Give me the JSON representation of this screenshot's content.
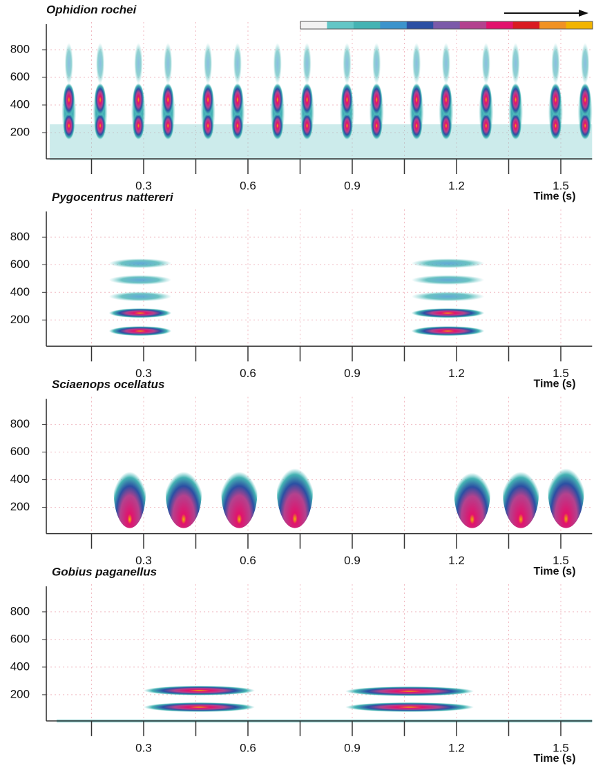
{
  "chart_data": [
    {
      "type": "spectrogram",
      "title": "Ophidion rochei",
      "xlabel": "Time (s)",
      "xlim": [
        0.02,
        1.59
      ],
      "ylim": [
        0,
        1000
      ],
      "xticks": [
        0.3,
        0.6,
        0.9,
        1.2,
        1.5
      ],
      "xminor_ticks": [
        0.15,
        0.45,
        0.75,
        1.05,
        1.35
      ],
      "yticks": [
        200,
        400,
        600,
        800
      ],
      "grid": true,
      "colorscale": [
        "#f2f2f2",
        "#63c6c6",
        "#45b3b3",
        "#3b93cc",
        "#2b4fa3",
        "#7b5aa9",
        "#b3428e",
        "#e2126c",
        "#d91a22",
        "#f19223",
        "#f2b400"
      ],
      "pulses": [
        {
          "start": 0.07,
          "end": 0.1,
          "fmin": 150,
          "fmax": 550
        },
        {
          "start": 0.16,
          "end": 0.19,
          "fmin": 150,
          "fmax": 550
        },
        {
          "start": 0.27,
          "end": 0.3,
          "fmin": 150,
          "fmax": 550
        },
        {
          "start": 0.355,
          "end": 0.385,
          "fmin": 150,
          "fmax": 550
        },
        {
          "start": 0.47,
          "end": 0.5,
          "fmin": 150,
          "fmax": 550
        },
        {
          "start": 0.555,
          "end": 0.585,
          "fmin": 150,
          "fmax": 550
        },
        {
          "start": 0.67,
          "end": 0.7,
          "fmin": 150,
          "fmax": 550
        },
        {
          "start": 0.755,
          "end": 0.785,
          "fmin": 150,
          "fmax": 550
        },
        {
          "start": 0.87,
          "end": 0.9,
          "fmin": 150,
          "fmax": 550
        },
        {
          "start": 0.955,
          "end": 0.985,
          "fmin": 150,
          "fmax": 550
        },
        {
          "start": 1.07,
          "end": 1.1,
          "fmin": 150,
          "fmax": 550
        },
        {
          "start": 1.155,
          "end": 1.185,
          "fmin": 150,
          "fmax": 550
        },
        {
          "start": 1.27,
          "end": 1.3,
          "fmin": 150,
          "fmax": 550
        },
        {
          "start": 1.355,
          "end": 1.385,
          "fmin": 150,
          "fmax": 550
        },
        {
          "start": 1.47,
          "end": 1.5,
          "fmin": 150,
          "fmax": 550
        },
        {
          "start": 1.555,
          "end": 1.585,
          "fmin": 150,
          "fmax": 550
        }
      ]
    },
    {
      "type": "spectrogram",
      "title": "Pygocentrus nattereri",
      "xlabel": "Time (s)",
      "xlim": [
        0.02,
        1.59
      ],
      "ylim": [
        0,
        1000
      ],
      "xticks": [
        0.3,
        0.6,
        0.9,
        1.2,
        1.5
      ],
      "xminor_ticks": [
        0.15,
        0.45,
        0.75,
        1.05,
        1.35
      ],
      "yticks": [
        200,
        400,
        600,
        800
      ],
      "grid": true,
      "pulses": [
        {
          "start": 0.2,
          "end": 0.38,
          "harmonics": [
            120,
            250,
            370,
            490,
            610
          ]
        },
        {
          "start": 1.07,
          "end": 1.28,
          "harmonics": [
            120,
            250,
            370,
            490,
            610
          ]
        }
      ]
    },
    {
      "type": "spectrogram",
      "title": "Sciaenops ocellatus",
      "xlabel": "Time (s)",
      "xlim": [
        0.02,
        1.59
      ],
      "ylim": [
        0,
        1000
      ],
      "xticks": [
        0.3,
        0.6,
        0.9,
        1.2,
        1.5
      ],
      "xminor_ticks": [
        0.15,
        0.45,
        0.75,
        1.05,
        1.35
      ],
      "yticks": [
        200,
        400,
        600,
        800
      ],
      "grid": true,
      "pulses": [
        {
          "start": 0.22,
          "end": 0.3,
          "fmin": 50,
          "fmax": 560
        },
        {
          "start": 0.37,
          "end": 0.46,
          "fmin": 50,
          "fmax": 560
        },
        {
          "start": 0.53,
          "end": 0.62,
          "fmin": 50,
          "fmax": 560
        },
        {
          "start": 0.69,
          "end": 0.78,
          "fmin": 50,
          "fmax": 590
        },
        {
          "start": 1.2,
          "end": 1.29,
          "fmin": 50,
          "fmax": 550
        },
        {
          "start": 1.34,
          "end": 1.43,
          "fmin": 50,
          "fmax": 560
        },
        {
          "start": 1.47,
          "end": 1.56,
          "fmin": 50,
          "fmax": 590
        }
      ]
    },
    {
      "type": "spectrogram",
      "title": "Gobius paganellus",
      "xlabel": "Time (s)",
      "xlim": [
        0.02,
        1.59
      ],
      "ylim": [
        0,
        1000
      ],
      "xticks": [
        0.3,
        0.6,
        0.9,
        1.2,
        1.5
      ],
      "xminor_ticks": [
        0.15,
        0.45,
        0.75,
        1.05,
        1.35
      ],
      "yticks": [
        200,
        400,
        600,
        800
      ],
      "grid": true,
      "pulses": [
        {
          "start": 0.3,
          "end": 0.62,
          "harmonics": [
            110,
            230
          ]
        },
        {
          "start": 0.88,
          "end": 1.25,
          "harmonics": [
            110,
            225
          ]
        }
      ]
    }
  ]
}
